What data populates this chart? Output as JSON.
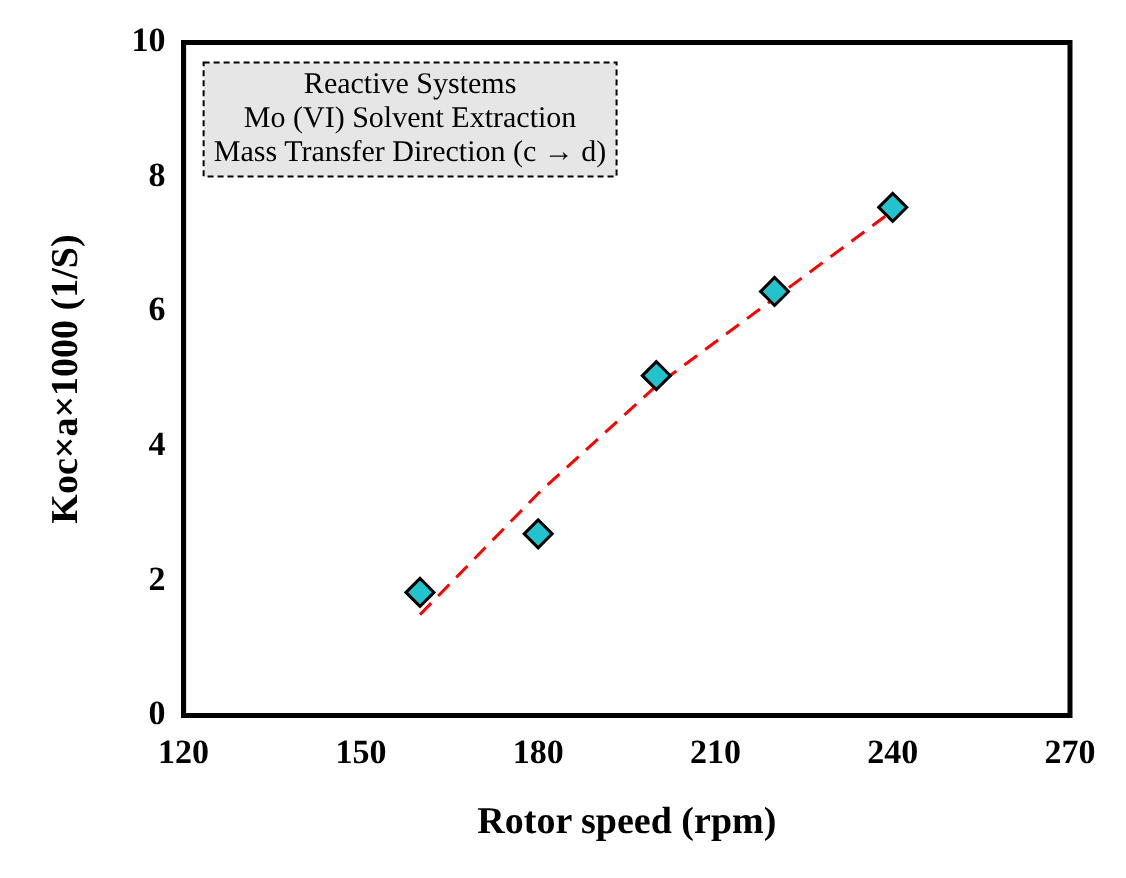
{
  "chart_data": {
    "type": "scatter",
    "xlabel": "Rotor speed (rpm)",
    "ylabel": "Koc×a×1000 (1/S)",
    "annotations": [
      "Reactive Systems",
      "Mo (VI) Solvent Extraction",
      "Mass Transfer Direction (c → d)"
    ],
    "xlim": [
      120,
      270
    ],
    "xticks": [
      120,
      150,
      180,
      210,
      240,
      270
    ],
    "ylim": [
      0,
      10
    ],
    "yticks": [
      0,
      2,
      4,
      6,
      8,
      10
    ],
    "grid": false,
    "series": [
      {
        "type": "scatter",
        "color": "#22c3cc",
        "marker": "diamond",
        "x": [
          160,
          180,
          200,
          220,
          240
        ],
        "values": [
          1.83,
          2.7,
          5.05,
          6.3,
          7.55
        ]
      },
      {
        "type": "line",
        "color": "#ff0000",
        "marker": "none",
        "line_style": "dashed",
        "x": [
          160,
          180,
          200,
          220,
          240
        ],
        "values": [
          1.5,
          3.3,
          4.9,
          6.2,
          7.5
        ]
      }
    ]
  }
}
